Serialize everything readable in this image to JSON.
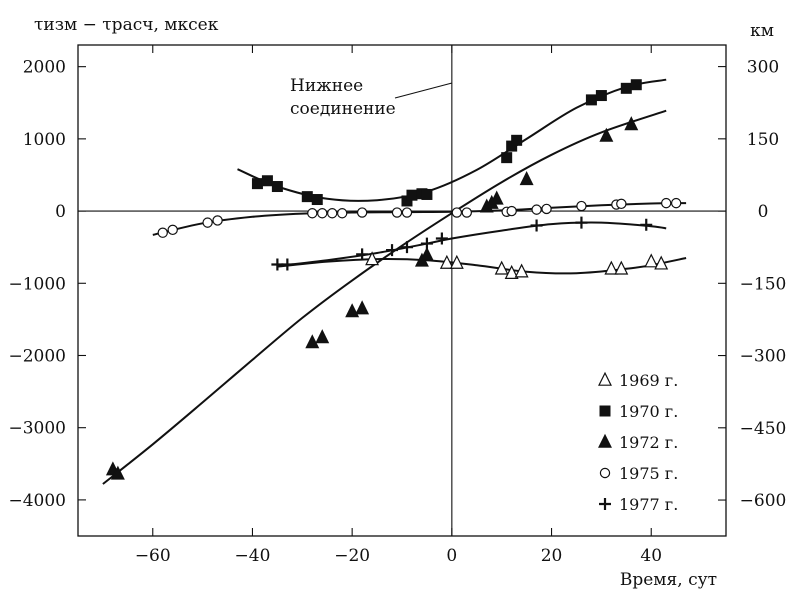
{
  "chart_data": {
    "type": "scatter",
    "title": "",
    "ylabel": "τизм − τрасч, мксек",
    "ylabel_right": "км",
    "xlabel": "Время, сут",
    "xlim": [
      -75,
      55
    ],
    "ylim": [
      -4500,
      2300
    ],
    "x_ticks": [
      -60,
      -40,
      -20,
      0,
      20,
      40
    ],
    "x_tick_labels": [
      "−60",
      "−40",
      "−20",
      "0",
      "20",
      "40"
    ],
    "y_ticks": [
      -4000,
      -3000,
      -2000,
      -1000,
      0,
      1000,
      2000
    ],
    "y_tick_labels": [
      "−4000",
      "−3000",
      "−2000",
      "−1000",
      "0",
      "1000",
      "2000"
    ],
    "y2_ticks": [
      -600,
      -450,
      -300,
      -150,
      0,
      150,
      300
    ],
    "y2_tick_labels": [
      "−600",
      "−450",
      "−300",
      "−150",
      "0",
      "150",
      "300"
    ],
    "y2_scale_us_per_km": 6.67,
    "grid": false,
    "reference_lines": {
      "x": 0,
      "y": 0
    },
    "annotation": {
      "lines": [
        "Нижнее",
        "соединение"
      ],
      "target": [
        0,
        1750
      ]
    },
    "legend_position": "bottom-right",
    "series": [
      {
        "name": "1969 г.",
        "marker": "triangle-open",
        "points": [
          [
            -16,
            -670
          ],
          [
            -1,
            -720
          ],
          [
            1,
            -720
          ],
          [
            10,
            -800
          ],
          [
            12,
            -860
          ],
          [
            14,
            -840
          ],
          [
            32,
            -800
          ],
          [
            34,
            -800
          ],
          [
            40,
            -700
          ],
          [
            42,
            -730
          ]
        ],
        "curve": [
          [
            -35,
            -770
          ],
          [
            -25,
            -700
          ],
          [
            -15,
            -665
          ],
          [
            -5,
            -680
          ],
          [
            5,
            -750
          ],
          [
            15,
            -840
          ],
          [
            25,
            -860
          ],
          [
            35,
            -800
          ],
          [
            40,
            -750
          ],
          [
            47,
            -650
          ]
        ]
      },
      {
        "name": "1970 г.",
        "marker": "square-filled",
        "points": [
          [
            -39,
            380
          ],
          [
            -37,
            420
          ],
          [
            -35,
            340
          ],
          [
            -29,
            200
          ],
          [
            -27,
            160
          ],
          [
            -9,
            140
          ],
          [
            -8,
            220
          ],
          [
            -6,
            240
          ],
          [
            -5,
            230
          ],
          [
            11,
            740
          ],
          [
            12,
            900
          ],
          [
            13,
            980
          ],
          [
            28,
            1540
          ],
          [
            30,
            1600
          ],
          [
            35,
            1700
          ],
          [
            37,
            1750
          ]
        ],
        "curve": [
          [
            -43,
            580
          ],
          [
            -35,
            340
          ],
          [
            -25,
            170
          ],
          [
            -15,
            150
          ],
          [
            -5,
            270
          ],
          [
            5,
            570
          ],
          [
            15,
            1000
          ],
          [
            25,
            1430
          ],
          [
            35,
            1720
          ],
          [
            43,
            1820
          ]
        ]
      },
      {
        "name": "1972 г.",
        "marker": "triangle-filled",
        "points": [
          [
            -68,
            -3580
          ],
          [
            -67,
            -3640
          ],
          [
            -28,
            -1820
          ],
          [
            -26,
            -1750
          ],
          [
            -20,
            -1390
          ],
          [
            -18,
            -1350
          ],
          [
            -6,
            -690
          ],
          [
            -5,
            -610
          ],
          [
            7,
            60
          ],
          [
            8,
            110
          ],
          [
            9,
            170
          ],
          [
            15,
            440
          ],
          [
            31,
            1040
          ],
          [
            36,
            1200
          ]
        ],
        "curve": [
          [
            -70,
            -3780
          ],
          [
            -60,
            -3230
          ],
          [
            -50,
            -2650
          ],
          [
            -40,
            -2060
          ],
          [
            -30,
            -1480
          ],
          [
            -20,
            -960
          ],
          [
            -10,
            -480
          ],
          [
            0,
            -30
          ],
          [
            10,
            400
          ],
          [
            20,
            780
          ],
          [
            30,
            1090
          ],
          [
            43,
            1390
          ]
        ]
      },
      {
        "name": "1975 г.",
        "marker": "circle-open",
        "points": [
          [
            -58,
            -300
          ],
          [
            -56,
            -260
          ],
          [
            -49,
            -160
          ],
          [
            -47,
            -130
          ],
          [
            -28,
            -30
          ],
          [
            -26,
            -30
          ],
          [
            -24,
            -30
          ],
          [
            -22,
            -30
          ],
          [
            -18,
            -20
          ],
          [
            -11,
            -20
          ],
          [
            -9,
            -20
          ],
          [
            1,
            -20
          ],
          [
            3,
            -20
          ],
          [
            11,
            -10
          ],
          [
            12,
            0
          ],
          [
            17,
            20
          ],
          [
            19,
            30
          ],
          [
            26,
            70
          ],
          [
            33,
            90
          ],
          [
            34,
            100
          ],
          [
            43,
            110
          ],
          [
            45,
            110
          ]
        ],
        "curve": [
          [
            -60,
            -330
          ],
          [
            -50,
            -170
          ],
          [
            -40,
            -80
          ],
          [
            -30,
            -35
          ],
          [
            -20,
            -20
          ],
          [
            -10,
            -15
          ],
          [
            0,
            -10
          ],
          [
            10,
            10
          ],
          [
            20,
            45
          ],
          [
            30,
            80
          ],
          [
            40,
            105
          ],
          [
            47,
            110
          ]
        ]
      },
      {
        "name": "1977 г.",
        "marker": "plus",
        "points": [
          [
            -35,
            -740
          ],
          [
            -33,
            -740
          ],
          [
            -18,
            -600
          ],
          [
            -12,
            -540
          ],
          [
            -9,
            -500
          ],
          [
            -5,
            -450
          ],
          [
            -2,
            -380
          ],
          [
            17,
            -200
          ],
          [
            26,
            -160
          ],
          [
            39,
            -190
          ]
        ],
        "curve": [
          [
            -35,
            -760
          ],
          [
            -25,
            -680
          ],
          [
            -15,
            -580
          ],
          [
            -5,
            -450
          ],
          [
            0,
            -380
          ],
          [
            10,
            -270
          ],
          [
            20,
            -180
          ],
          [
            30,
            -160
          ],
          [
            40,
            -210
          ],
          [
            43,
            -240
          ]
        ]
      }
    ]
  }
}
